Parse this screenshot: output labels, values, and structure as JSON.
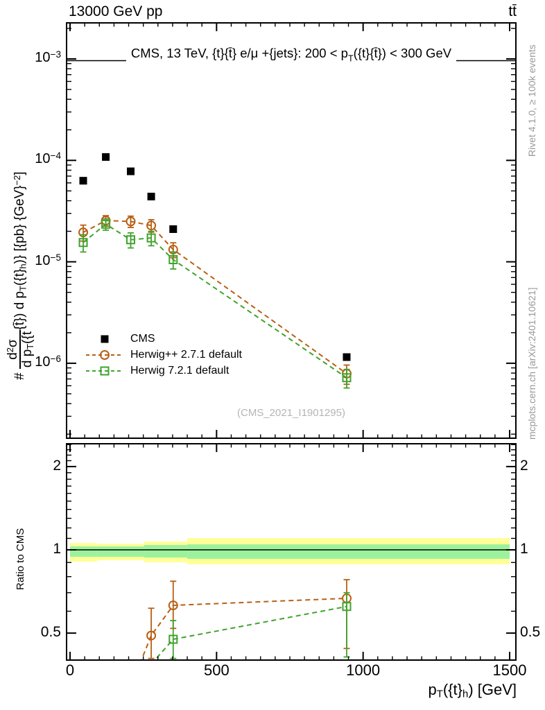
{
  "header": {
    "left": "13000 GeV pp",
    "right": "tt̄"
  },
  "side_notes": {
    "top": "Rivet 4.1.0, ≥ 100k events",
    "bottom": "mcplots.cern.ch [arXiv:2401.10621]"
  },
  "watermark": "(CMS_2021_I1901295)",
  "labels": {
    "ylabel_ratio": "Ratio to CMS"
  },
  "title_rich": [
    {
      "t": "CMS, 13 TeV, {t}{t̄} e/μ +{jets}: 200 <  p"
    },
    {
      "sub": "T"
    },
    {
      "t": "({t}{t̄}) < 300 GeV"
    }
  ],
  "xlabel_rich": [
    {
      "t": "p"
    },
    {
      "sub": "T"
    },
    {
      "t": "({t}"
    },
    {
      "sub": "h"
    },
    {
      "t": ") [GeV]"
    }
  ],
  "ylabel_main_rich": [
    {
      "t": "# "
    },
    {
      "frac": {
        "num": [
          {
            "t": "d"
          },
          {
            "sup": "2"
          },
          {
            "t": "σ"
          }
        ],
        "den": [
          {
            "t": "d p"
          },
          {
            "sub": "T"
          },
          {
            "t": "({t"
          }
        ]
      }
    },
    {
      "t": "{t̄}) d p"
    },
    {
      "sub": "T"
    },
    {
      "t": "({t}"
    },
    {
      "sub": "h"
    },
    {
      "t": ")} [{pb} {GeV}"
    },
    {
      "sup": "−2"
    },
    {
      "t": "]"
    }
  ],
  "colors": {
    "cms": "#000000",
    "herwigpp": "#b85f12",
    "herwig7": "#3fa32c",
    "band_outer": "#ffff9a",
    "band_inner": "#9cf29c",
    "note_gray": "#999999",
    "watermark_gray": "#b5b5b5"
  },
  "legend": [
    {
      "label": "CMS",
      "marker": "square-filled",
      "color_key": "cms",
      "dashed": false
    },
    {
      "label": "Herwig++ 2.7.1 default",
      "marker": "circle-open",
      "color_key": "herwigpp",
      "dashed": true
    },
    {
      "label": "Herwig 7.2.1 default",
      "marker": "square-open",
      "color_key": "herwig7",
      "dashed": true
    }
  ],
  "chart_data": [
    {
      "type": "scatter",
      "title": "CMS, 13 TeV, {t}{t̄} e/μ +{jets}: 200 < p_T({t}{t̄}) < 300 GeV",
      "xlabel": "p_T({t}_h) [GeV]",
      "ylabel": "# d²σ/(d p_T({t}{t̄}) d p_T({t}_h)) [{pb} {GeV}^−2]",
      "xscale": "linear",
      "yscale": "log",
      "xlim": [
        0,
        1500
      ],
      "ylim": [
        2e-07,
        0.0022
      ],
      "grid": false,
      "legend_position": "inside-lower-left",
      "x": [
        45,
        122,
        207,
        277,
        352,
        944
      ],
      "series": [
        {
          "name": "CMS",
          "color_key": "cms",
          "marker": "square-filled",
          "line": "none",
          "values": [
            6.3e-05,
            0.000108,
            7.8e-05,
            4.4e-05,
            2.1e-05,
            1.15e-06
          ]
        },
        {
          "name": "Herwig++ 2.7.1 default",
          "color_key": "herwigpp",
          "marker": "circle-open",
          "line": "dashed",
          "values": [
            1.95e-05,
            2.55e-05,
            2.5e-05,
            2.28e-05,
            1.32e-05,
            7.9e-07
          ],
          "yerr": [
            3.5e-06,
            3e-06,
            3.2e-06,
            3.2e-06,
            2.2e-06,
            1.7e-07
          ]
        },
        {
          "name": "Herwig 7.2.1 default",
          "color_key": "herwig7",
          "marker": "square-open",
          "line": "dashed",
          "values": [
            1.55e-05,
            2.35e-05,
            1.65e-05,
            1.72e-05,
            1.05e-05,
            7.2e-07
          ],
          "yerr": [
            3e-06,
            3e-06,
            2.8e-06,
            2.8e-06,
            2e-06,
            1.5e-07
          ]
        }
      ],
      "yticks": [
        {
          "v": 0.001,
          "exp": "−3"
        },
        {
          "v": 0.0001,
          "exp": "−4"
        },
        {
          "v": 1e-05,
          "exp": "−5"
        },
        {
          "v": 1e-06,
          "exp": "−6"
        }
      ]
    },
    {
      "type": "ratio",
      "ylabel": "Ratio to CMS",
      "yscale": "log",
      "ylim": [
        0.4,
        2.42
      ],
      "reference_line": 1,
      "bands": [
        {
          "x": [
            0,
            92
          ],
          "outer": [
            0.906,
            1.059
          ],
          "inner": [
            0.944,
            1.029
          ]
        },
        {
          "x": [
            92,
            253
          ],
          "outer": [
            0.917,
            1.053
          ],
          "inner": [
            0.944,
            1.029
          ]
        },
        {
          "x": [
            253,
            400
          ],
          "outer": [
            0.901,
            1.072
          ],
          "inner": [
            0.938,
            1.041
          ]
        },
        {
          "x": [
            400,
            1500
          ],
          "outer": [
            0.886,
            1.103
          ],
          "inner": [
            0.928,
            1.047
          ]
        }
      ],
      "series": [
        {
          "name": "Herwig++ 2.7.1 default",
          "color_key": "herwigpp",
          "marker": "circle-open",
          "points": [
            {
              "x": 207,
              "y": 0.32
            },
            {
              "x": 277,
              "y": 0.49,
              "lo": 0.405,
              "hi": 0.615
            },
            {
              "x": 352,
              "y": 0.63,
              "lo": 0.52,
              "hi": 0.77
            },
            {
              "x": 944,
              "y": 0.668,
              "lo": 0.44,
              "hi": 0.78
            }
          ]
        },
        {
          "name": "Herwig 7.2.1 default",
          "color_key": "herwig7",
          "marker": "square-open",
          "points": [
            {
              "x": 277,
              "y": 0.386
            },
            {
              "x": 352,
              "y": 0.475,
              "lo": 0.405,
              "hi": 0.555
            },
            {
              "x": 944,
              "y": 0.624,
              "lo": 0.41,
              "hi": 0.7
            }
          ]
        }
      ],
      "yticks": [
        {
          "v": 0.5,
          "label": "0.5"
        },
        {
          "v": 1,
          "label": "1"
        },
        {
          "v": 2,
          "label": "2"
        }
      ],
      "xticks": [
        {
          "v": 0,
          "label": "0"
        },
        {
          "v": 500,
          "label": "500"
        },
        {
          "v": 1000,
          "label": "1000"
        },
        {
          "v": 1500,
          "label": "1500"
        }
      ],
      "x_minor_step": 50
    }
  ]
}
